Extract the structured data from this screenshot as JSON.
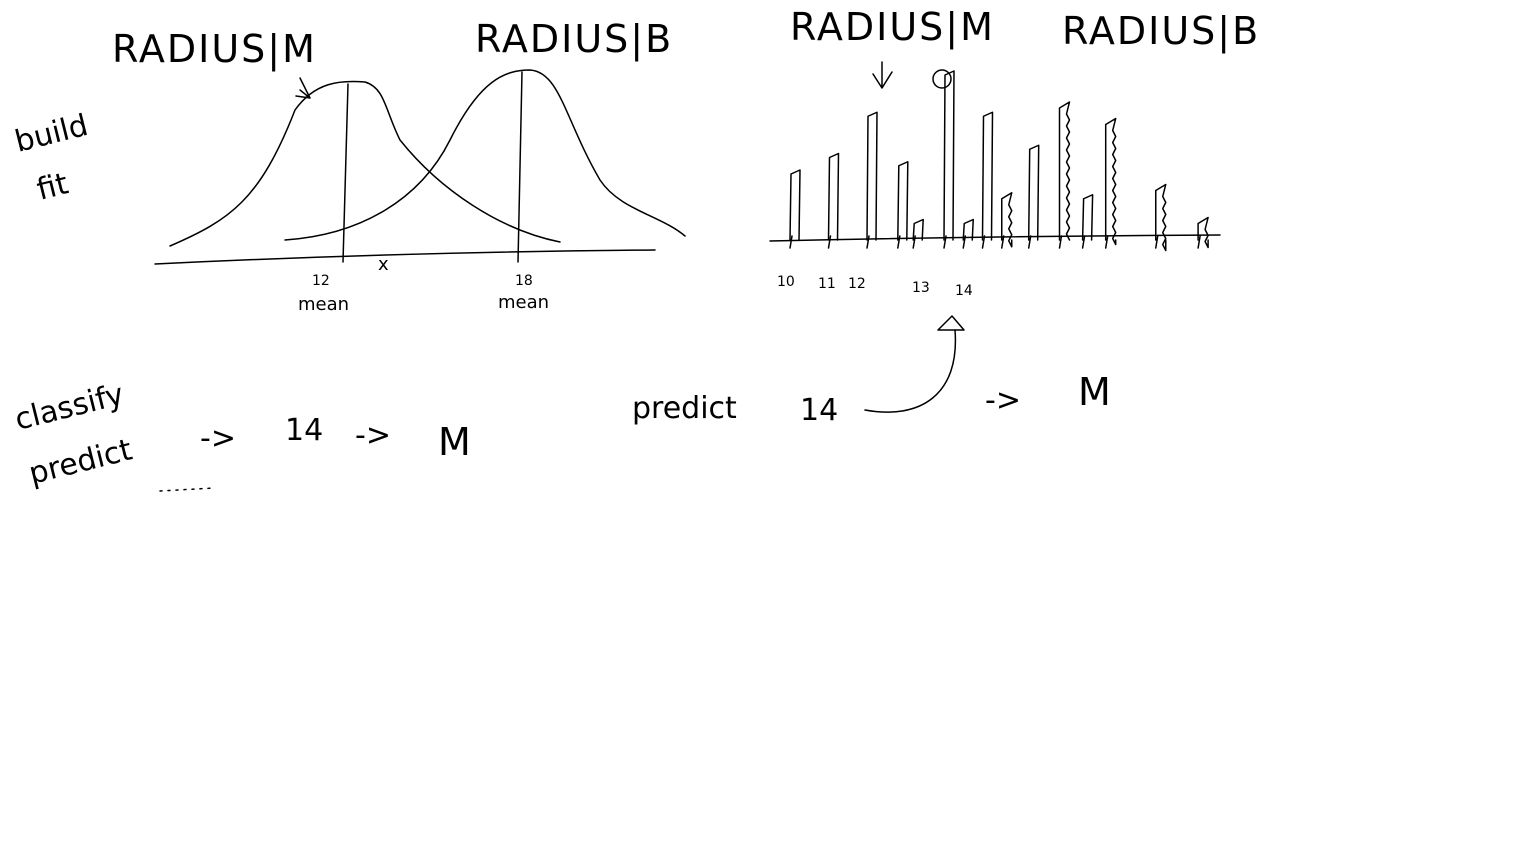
{
  "gaussian_panel": {
    "title_m": "RADIUS|M",
    "title_b": "RADIUS|B",
    "side_label_line1": "build",
    "side_label_line2": "fit",
    "mean_m_value": "12",
    "mean_m_label": "mean",
    "mean_b_value": "18",
    "mean_b_label": "mean",
    "marker": "x"
  },
  "histogram_panel": {
    "title_m": "RADIUS|M",
    "title_b": "RADIUS|B",
    "tick_10": "10",
    "tick_11": "11",
    "tick_12": "12",
    "tick_13": "13",
    "tick_14": "14",
    "bars": [
      {
        "x": 10.0,
        "h": 0.4,
        "series": "M"
      },
      {
        "x": 11.0,
        "h": 0.5,
        "series": "M"
      },
      {
        "x": 12.0,
        "h": 0.75,
        "series": "M"
      },
      {
        "x": 12.8,
        "h": 0.45,
        "series": "M"
      },
      {
        "x": 13.2,
        "h": 0.1,
        "series": "M"
      },
      {
        "x": 14.0,
        "h": 1.0,
        "series": "M"
      },
      {
        "x": 14.5,
        "h": 0.1,
        "series": "M"
      },
      {
        "x": 15.0,
        "h": 0.75,
        "series": "M"
      },
      {
        "x": 15.5,
        "h": 0.25,
        "series": "B"
      },
      {
        "x": 16.2,
        "h": 0.55,
        "series": "M"
      },
      {
        "x": 17.0,
        "h": 0.8,
        "series": "B"
      },
      {
        "x": 17.6,
        "h": 0.25,
        "series": "M"
      },
      {
        "x": 18.2,
        "h": 0.7,
        "series": "B"
      },
      {
        "x": 19.5,
        "h": 0.3,
        "series": "B"
      },
      {
        "x": 20.6,
        "h": 0.1,
        "series": "B"
      }
    ]
  },
  "classify_section": {
    "label_line1": "classify",
    "label_line2": "predict",
    "arrow1": "->",
    "input_value": "14",
    "arrow2": "->",
    "result": "M"
  },
  "predict_section": {
    "label": "predict",
    "input_value": "14",
    "arrow": "->",
    "result": "M"
  }
}
